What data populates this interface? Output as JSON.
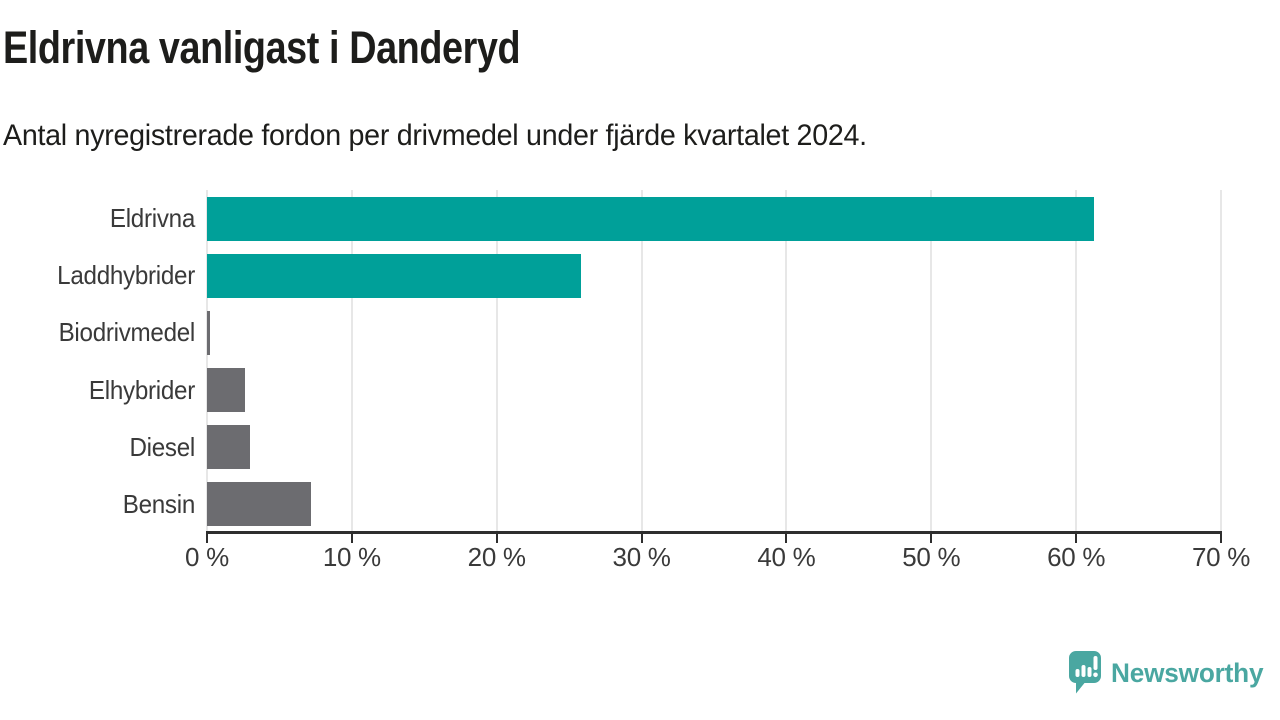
{
  "header": {
    "title": "Eldrivna vanligast i Danderyd",
    "subtitle": "Antal nyregistrerade fordon per drivmedel under fjärde kvartalet 2024."
  },
  "chart_data": {
    "type": "bar",
    "orientation": "horizontal",
    "title": "Eldrivna vanligast i Danderyd",
    "subtitle": "Antal nyregistrerade fordon per drivmedel under fjärde kvartalet 2024.",
    "categories": [
      "Eldrivna",
      "Laddhybrider",
      "Biodrivmedel",
      "Elhybrider",
      "Diesel",
      "Bensin"
    ],
    "values": [
      61.2,
      25.8,
      0.2,
      2.6,
      3.0,
      7.2
    ],
    "unit": "%",
    "xlabel": "",
    "ylabel": "",
    "xlim": [
      0,
      70
    ],
    "x_ticks": [
      0,
      10,
      20,
      30,
      40,
      50,
      60,
      70
    ],
    "x_tick_labels": [
      "0 %",
      "10 %",
      "20 %",
      "30 %",
      "40 %",
      "50 %",
      "60 %",
      "70 %"
    ],
    "bar_colors": [
      "#00a099",
      "#00a099",
      "#6c6c70",
      "#6c6c70",
      "#6c6c70",
      "#6c6c70"
    ],
    "grid": true,
    "legend": false
  },
  "colors": {
    "accent_teal": "#00a099",
    "neutral_gray": "#6c6c70",
    "gridline": "#e7e7e7",
    "axis": "#2e2e2e",
    "text_dark": "#1d1d1b",
    "text_label": "#3a3a3a",
    "logo_teal": "#4aa7a1"
  },
  "footer": {
    "brand": "Newsworthy"
  }
}
